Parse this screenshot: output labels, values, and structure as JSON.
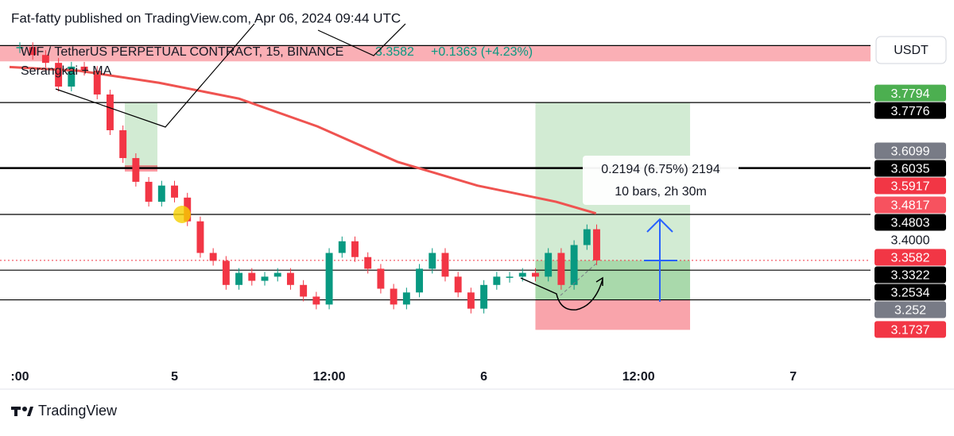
{
  "header": "Fat-fatty published on TradingView.com, Apr 06, 2024 09:44 UTC",
  "footer": "TradingView",
  "chart_data": {
    "type": "candlestick",
    "legend": {
      "symbol": "WIF / TetherUS PERPETUAL CONTRACT, 15, BINANCE",
      "last": "3.3582",
      "change": "+0.1363 (+4.23%)",
      "indicator": "Serangkai + MA"
    },
    "currency": "USDT",
    "xlim": [
      11.2,
      78
    ],
    "ylim": [
      3.09,
      4.05
    ],
    "xticks": [
      {
        "value": 12,
        "label": ":00"
      },
      {
        "value": 24,
        "label": "5"
      },
      {
        "value": 36,
        "label": "12:00"
      },
      {
        "value": 48,
        "label": "6"
      },
      {
        "value": 60,
        "label": "12:00"
      },
      {
        "value": 72,
        "label": "7"
      }
    ],
    "series": [
      {
        "name": "WIF",
        "up_color": "#089981",
        "down_color": "#f23645",
        "x": [
          12,
          13,
          14,
          15,
          16,
          17,
          18,
          19,
          20,
          21,
          22,
          23,
          24,
          25,
          26,
          27,
          28,
          29,
          30,
          31,
          32,
          33,
          34,
          35,
          36,
          37,
          38,
          39,
          40,
          41,
          42,
          43,
          44,
          45,
          46,
          47,
          48,
          49,
          50,
          51,
          52,
          53,
          54,
          55,
          56,
          56.75
        ],
        "values": [
          3.925,
          3.904,
          3.883,
          3.82,
          3.873,
          3.862,
          3.799,
          3.704,
          3.63,
          3.567,
          3.514,
          3.557,
          3.525,
          3.462,
          3.378,
          3.357,
          3.293,
          3.325,
          3.304,
          3.315,
          3.325,
          3.293,
          3.262,
          3.241,
          3.378,
          3.409,
          3.367,
          3.336,
          3.283,
          3.241,
          3.273,
          3.336,
          3.378,
          3.315,
          3.273,
          3.23,
          3.293,
          3.315,
          3.315,
          3.325,
          3.315,
          3.378,
          3.293,
          3.399,
          3.441,
          3.3582
        ]
      },
      {
        "name": "MA",
        "color": "#ef5350",
        "x": [
          11.2,
          16.6,
          22.8,
          29,
          35.1,
          41.3,
          47.5,
          53.6,
          56.7
        ],
        "values": [
          3.872,
          3.862,
          3.83,
          3.788,
          3.714,
          3.62,
          3.557,
          3.514,
          3.483
        ]
      }
    ],
    "levels": [
      3.7776,
      3.6035,
      3.4803,
      3.3322,
      3.2534
    ],
    "last_price": 3.3582,
    "zone": [
      3.887,
      3.929
    ],
    "position": {
      "x": [
        52,
        64
      ],
      "target": 3.7776,
      "entry": 3.2534,
      "stop": 3.1737,
      "info": [
        "0.2194 (6.75%) 2194",
        "10 bars, 2h 30m"
      ]
    },
    "price_labels": [
      {
        "value": 3.7794,
        "color": "#4caf50"
      },
      {
        "value": 3.7776,
        "color": "#000000"
      },
      {
        "value": 3.6099,
        "color": "#787b86"
      },
      {
        "value": 3.6035,
        "color": "#000000"
      },
      {
        "value": 3.5917,
        "color": "#f23645"
      },
      {
        "value": 3.4817,
        "color": "#f7525f"
      },
      {
        "value": 3.4803,
        "color": "#000000"
      },
      {
        "value": 3.4,
        "label": "3.4000",
        "color": "none"
      },
      {
        "value": 3.3582,
        "color": "#f23645"
      },
      {
        "value": 3.3322,
        "color": "#000000"
      },
      {
        "value": 3.2534,
        "color": "#000000"
      },
      {
        "value": 3.252,
        "color": "#787b86"
      },
      {
        "value": 3.1737,
        "color": "#f23645"
      }
    ]
  }
}
